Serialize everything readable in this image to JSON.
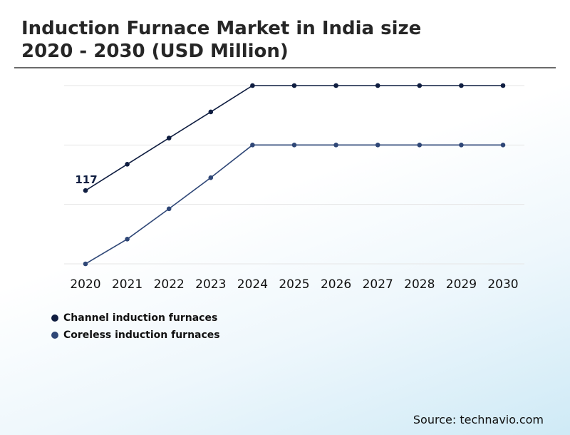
{
  "title": {
    "line1": "Induction Furnace Market in India size",
    "line2": "2020 - 2030 (USD Million)"
  },
  "source": "Source: technavio.com",
  "colors": {
    "series_channel": "#0f1d40",
    "series_coreless": "#2f4777",
    "grid": "#e6e6e6",
    "text": "#111111"
  },
  "chart_data": {
    "type": "line",
    "x": [
      "2020",
      "2021",
      "2022",
      "2023",
      "2024",
      "2025",
      "2026",
      "2027",
      "2028",
      "2029",
      "2030"
    ],
    "series": [
      {
        "name": "Channel induction furnaces",
        "values": [
          117,
          130.3,
          143.5,
          156.7,
          170,
          170,
          170,
          170,
          170,
          170,
          170
        ],
        "labels": [
          "117",
          "",
          "",
          "",
          "",
          "",
          "",
          "",
          "",
          "",
          ""
        ]
      },
      {
        "name": "Coreless induction furnaces",
        "values": [
          80,
          92.5,
          107.8,
          123.5,
          140,
          140,
          140,
          140,
          140,
          140,
          140
        ],
        "labels": [
          "",
          "",
          "",
          "",
          "",
          "",
          "",
          "",
          "",
          "",
          ""
        ]
      }
    ],
    "ylim": [
      80,
      170
    ],
    "grid": true,
    "y_ticks_visible": false,
    "legend_position": "bottom-left",
    "xlabel": "",
    "ylabel": ""
  }
}
